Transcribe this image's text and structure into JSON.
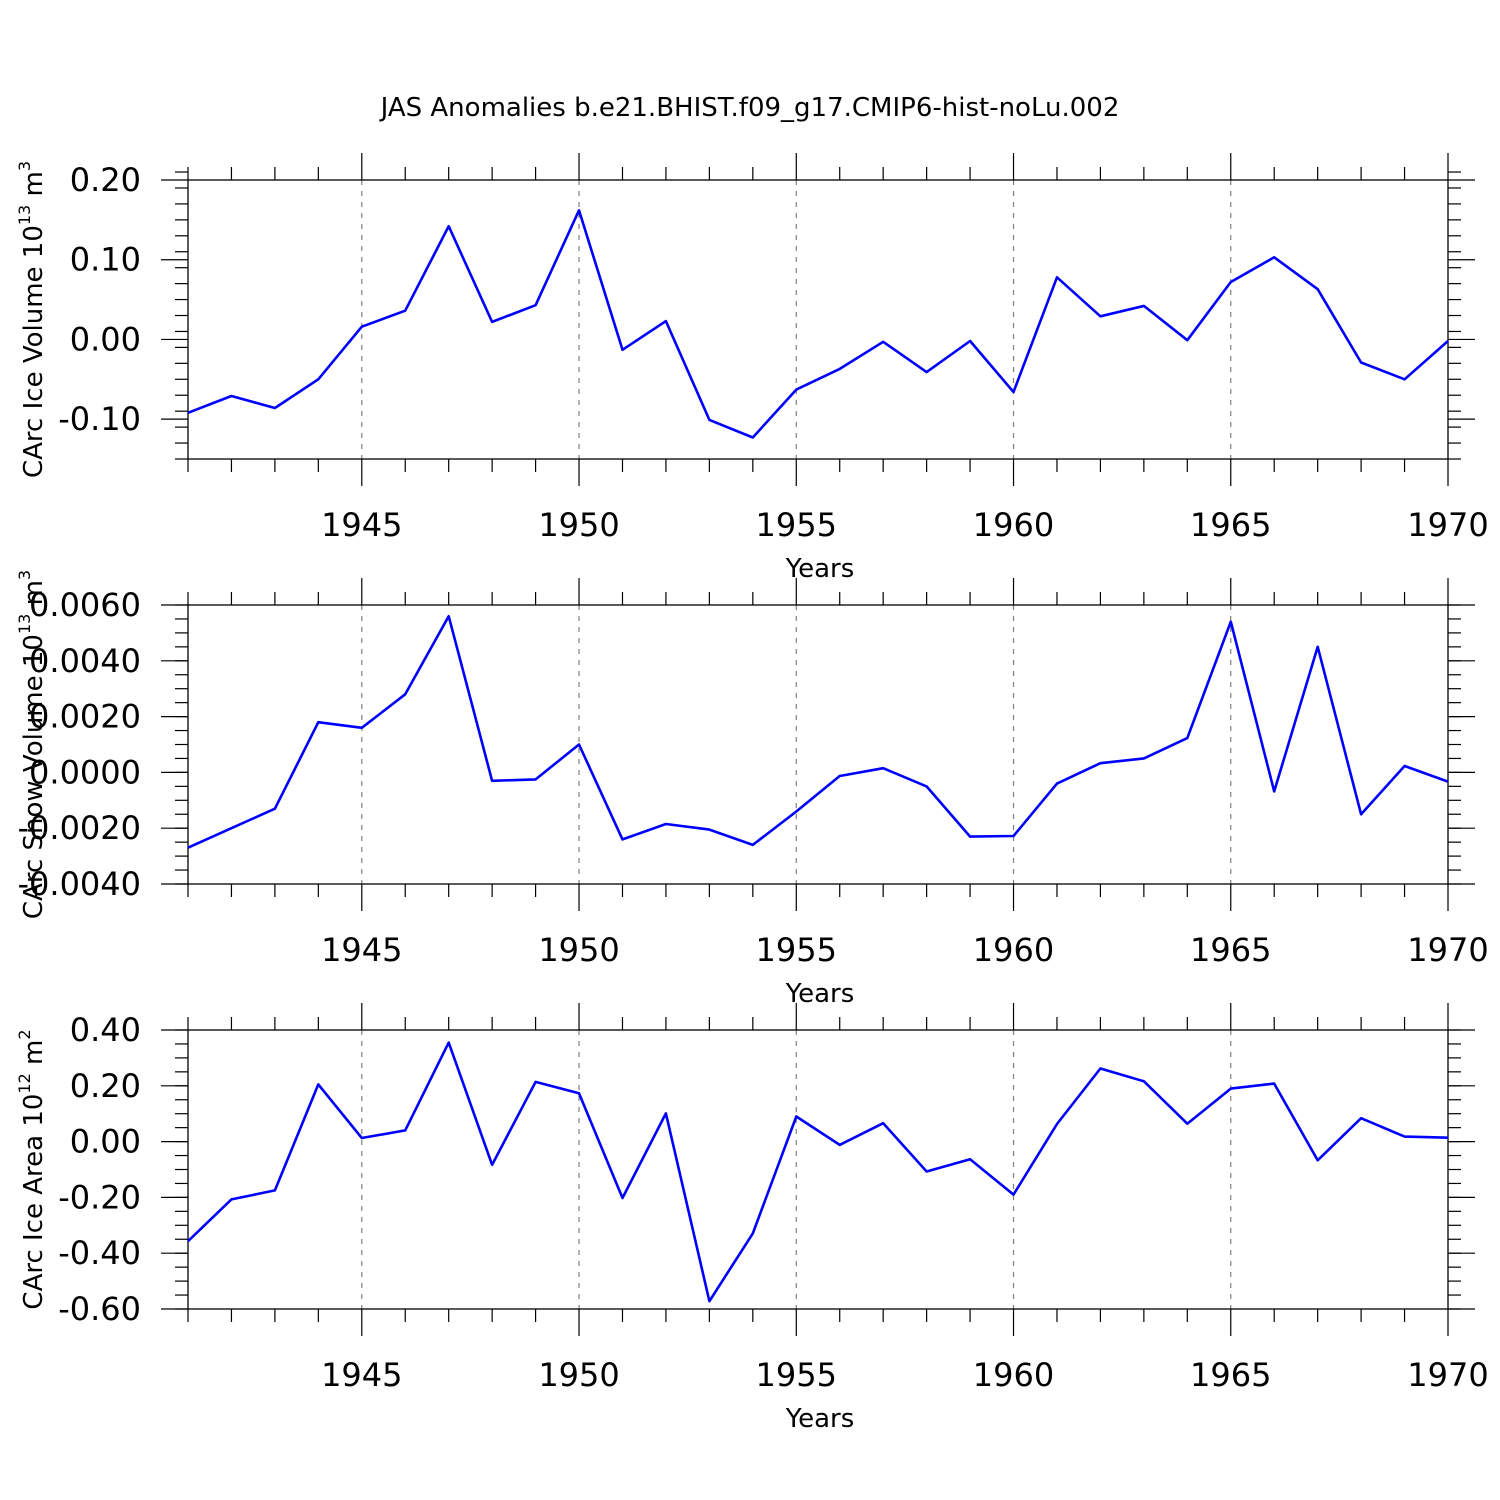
{
  "figure": {
    "title": "JAS Anomalies b.e21.BHIST.f09_g17.CMIP6-hist-noLu.002",
    "line_color": "#0000ff"
  },
  "chart_data": [
    {
      "type": "line",
      "title": "",
      "xlabel": "Years",
      "ylabel": {
        "base": "CArc Ice Volume 10",
        "exp": "13",
        "unit": " m",
        "unit_exp": "3"
      },
      "xlim": [
        1941,
        1970
      ],
      "ylim": [
        -0.15,
        0.2
      ],
      "xticks": [
        1945,
        1950,
        1955,
        1960,
        1965,
        1970
      ],
      "yticks": [
        0.2,
        0.1,
        0.0,
        -0.1
      ],
      "ytick_labels": [
        "0.20",
        "0.10",
        "0.00",
        "-0.10"
      ],
      "yminor_step": 0.02,
      "x": [
        1941,
        1942,
        1943,
        1944,
        1945,
        1946,
        1947,
        1948,
        1949,
        1950,
        1951,
        1952,
        1953,
        1954,
        1955,
        1956,
        1957,
        1958,
        1959,
        1960,
        1961,
        1962,
        1963,
        1964,
        1965,
        1966,
        1967,
        1968,
        1969,
        1970
      ],
      "series": [
        {
          "name": "CArc Ice Volume",
          "values": [
            -0.092,
            -0.071,
            -0.086,
            -0.05,
            0.016,
            0.036,
            0.142,
            0.022,
            0.043,
            0.162,
            -0.013,
            0.023,
            -0.101,
            -0.123,
            -0.063,
            -0.037,
            -0.003,
            -0.041,
            -0.002,
            -0.066,
            0.078,
            0.029,
            0.042,
            -0.001,
            0.072,
            0.103,
            0.063,
            -0.029,
            -0.05,
            -0.002
          ]
        }
      ]
    },
    {
      "type": "line",
      "title": "",
      "xlabel": "Years",
      "ylabel": {
        "base": "CArc Snow Volume 10",
        "exp": "13",
        "unit": " m",
        "unit_exp": "3"
      },
      "xlim": [
        1941,
        1970
      ],
      "ylim": [
        -0.004,
        0.006
      ],
      "xticks": [
        1945,
        1950,
        1955,
        1960,
        1965,
        1970
      ],
      "yticks": [
        0.006,
        0.004,
        0.002,
        0.0,
        -0.002,
        -0.004
      ],
      "ytick_labels": [
        "0.0060",
        "0.0040",
        "0.0020",
        "0.0000",
        "-0.0020",
        "-0.0040"
      ],
      "yminor_step": 0.0005,
      "x": [
        1941,
        1942,
        1943,
        1944,
        1945,
        1946,
        1947,
        1948,
        1949,
        1950,
        1951,
        1952,
        1953,
        1954,
        1955,
        1956,
        1957,
        1958,
        1959,
        1960,
        1961,
        1962,
        1963,
        1964,
        1965,
        1966,
        1967,
        1968,
        1969,
        1970
      ],
      "series": [
        {
          "name": "CArc Snow Volume",
          "values": [
            -0.0027,
            -0.002,
            -0.0013,
            0.0018,
            0.0016,
            0.0028,
            0.0056,
            -0.0003,
            -0.00025,
            0.001,
            -0.0024,
            -0.00185,
            -0.00205,
            -0.0026,
            -0.0014,
            -0.00013,
            0.00015,
            -0.0005,
            -0.0023,
            -0.00228,
            -0.0004,
            0.00033,
            0.0005,
            0.00123,
            0.0054,
            -0.00068,
            0.0045,
            -0.0015,
            0.00023,
            -0.00033
          ]
        }
      ]
    },
    {
      "type": "line",
      "title": "",
      "xlabel": "Years",
      "ylabel": {
        "base": "CArc Ice Area 10",
        "exp": "12",
        "unit": " m",
        "unit_exp": "2"
      },
      "xlim": [
        1941,
        1970
      ],
      "ylim": [
        -0.6,
        0.4
      ],
      "xticks": [
        1945,
        1950,
        1955,
        1960,
        1965,
        1970
      ],
      "yticks": [
        0.4,
        0.2,
        0.0,
        -0.2,
        -0.4,
        -0.6
      ],
      "ytick_labels": [
        "0.40",
        "0.20",
        "0.00",
        "-0.20",
        "-0.40",
        "-0.60"
      ],
      "yminor_step": 0.05,
      "x": [
        1941,
        1942,
        1943,
        1944,
        1945,
        1946,
        1947,
        1948,
        1949,
        1950,
        1951,
        1952,
        1953,
        1954,
        1955,
        1956,
        1957,
        1958,
        1959,
        1960,
        1961,
        1962,
        1963,
        1964,
        1965,
        1966,
        1967,
        1968,
        1969,
        1970
      ],
      "series": [
        {
          "name": "CArc Ice Area",
          "values": [
            -0.357,
            -0.207,
            -0.175,
            0.205,
            0.013,
            0.04,
            0.355,
            -0.083,
            0.214,
            0.173,
            -0.202,
            0.101,
            -0.572,
            -0.329,
            0.09,
            -0.012,
            0.066,
            -0.107,
            -0.063,
            -0.19,
            0.063,
            0.262,
            0.216,
            0.064,
            0.19,
            0.208,
            -0.067,
            0.084,
            0.018,
            0.014
          ]
        }
      ]
    }
  ]
}
